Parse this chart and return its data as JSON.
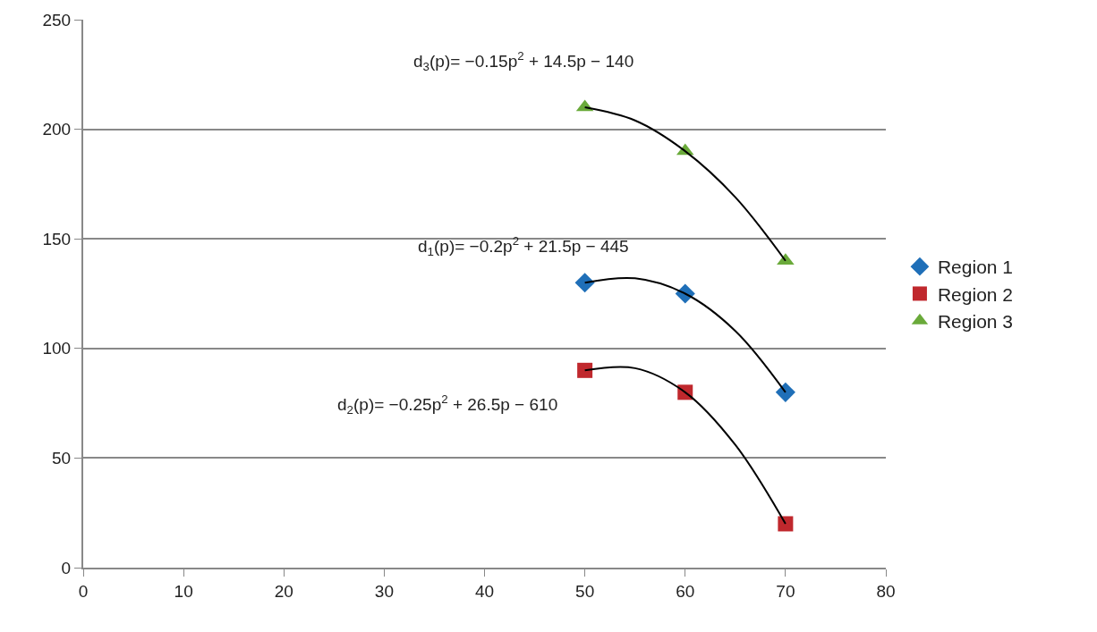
{
  "chart_data": {
    "type": "scatter",
    "xlim": [
      0,
      80
    ],
    "xticks": [
      0,
      10,
      20,
      30,
      40,
      50,
      60,
      70,
      80
    ],
    "ylim": [
      0,
      250
    ],
    "yticks": [
      0,
      50,
      100,
      150,
      200,
      250
    ],
    "grid": "y",
    "legend": "right",
    "series": [
      {
        "name": "Region 1",
        "color": "#1f6fb8",
        "marker": "diamond",
        "x": [
          50,
          60,
          70
        ],
        "values": [
          130,
          125,
          80
        ]
      },
      {
        "name": "Region 2",
        "color": "#c0282d",
        "marker": "square",
        "x": [
          50,
          60,
          70
        ],
        "values": [
          90,
          80,
          20
        ]
      },
      {
        "name": "Region 3",
        "color": "#6aaa3a",
        "marker": "triangle",
        "x": [
          50,
          60,
          70
        ],
        "values": [
          210,
          190,
          140
        ]
      },
      {
        "type": "line",
        "color": "#000000",
        "marker": "none",
        "x": [
          50,
          55,
          60,
          65,
          70
        ],
        "values": [
          130,
          132,
          125,
          108,
          80
        ]
      },
      {
        "type": "line",
        "color": "#000000",
        "marker": "none",
        "x": [
          50,
          55,
          60,
          65,
          70
        ],
        "values": [
          90,
          91,
          80,
          56,
          20
        ]
      },
      {
        "type": "line",
        "color": "#000000",
        "marker": "none",
        "x": [
          50,
          55,
          60,
          65,
          70
        ],
        "values": [
          210,
          204,
          190,
          169,
          140
        ]
      }
    ],
    "annotations": [
      "d$_{3}$(p)= −0.15p$^{2}$ + 14.5p − 140",
      "d$_{1}$(p)= −0.2p$^{2}$ + 21.5p − 445",
      "d$_{2}$(p)= −0.25p$^{2}$ + 26.5p − 610"
    ]
  }
}
